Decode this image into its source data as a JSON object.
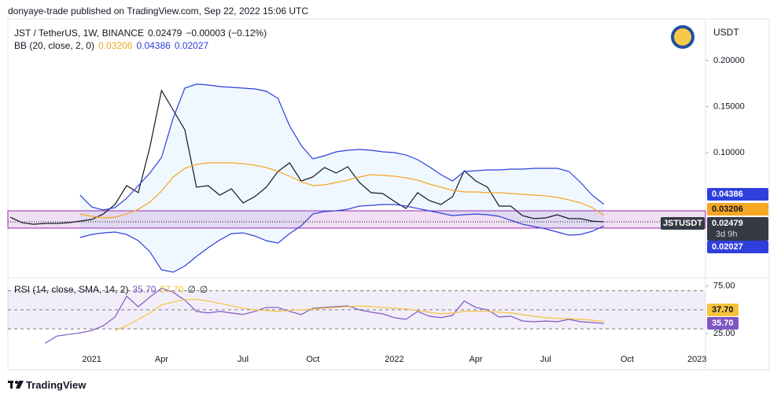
{
  "header": {
    "published": "donyaye-trade published on TradingView.com, Sep 22, 2022 15:06 UTC"
  },
  "footer": {
    "brand": "TradingView"
  },
  "chart_data": [
    {
      "type": "line",
      "title": "JST / TetherUS, 1W, BINANCE",
      "change": "−0.00003 (−0.12%)",
      "indicator": "BB (20, close, 2, 0)",
      "y_axis_label": "USDT",
      "symbol_label": "JSTUSDT",
      "countdown": "3d 9h",
      "ylim": [
        -0.035,
        0.2487
      ],
      "yticks": [
        {
          "value": 0.1,
          "label": "0.10000"
        },
        {
          "value": 0.15,
          "label": "0.15000"
        },
        {
          "value": 0.2,
          "label": "0.20000"
        }
      ],
      "band_fill": "rgba(33,150,243,0.07)",
      "categories": [
        null,
        null,
        null,
        null,
        null,
        null,
        null,
        "2021",
        null,
        null,
        null,
        null,
        null,
        "Apr",
        null,
        null,
        null,
        null,
        null,
        null,
        "Jul",
        null,
        null,
        null,
        null,
        null,
        "Oct",
        null,
        null,
        null,
        null,
        null,
        null,
        "2022",
        null,
        null,
        null,
        null,
        null,
        null,
        "Apr",
        null,
        null,
        null,
        null,
        null,
        "Jul",
        null,
        null,
        null,
        null,
        null,
        null,
        "Oct",
        null,
        null,
        null,
        null,
        null,
        "2023"
      ],
      "series": [
        {
          "color": "#131722",
          "values": [
            0.0299,
            0.0239,
            0.0222,
            0.0231,
            0.0231,
            0.0239,
            0.0256,
            0.0274,
            0.0333,
            0.0436,
            0.0641,
            0.0564,
            0.106,
            0.1675,
            0.1462,
            0.1248,
            0.0624,
            0.0641,
            0.0538,
            0.0607,
            0.0453,
            0.0521,
            0.0624,
            0.0795,
            0.0889,
            0.0692,
            0.0735,
            0.0838,
            0.0778,
            0.0846,
            0.0675,
            0.0564,
            0.0556,
            0.047,
            0.0393,
            0.0564,
            0.0479,
            0.0436,
            0.0521,
            0.0803,
            0.0692,
            0.0624,
            0.0419,
            0.0419,
            0.0316,
            0.0282,
            0.0291,
            0.0325,
            0.0282,
            0.0282,
            0.0256,
            0.02479,
            null,
            null,
            null,
            null,
            null,
            null,
            null,
            null
          ]
        },
        {
          "color": "#2f3fdc",
          "values": [
            null,
            null,
            null,
            null,
            null,
            null,
            0.0538,
            0.041,
            0.0376,
            0.0402,
            0.0504,
            0.0641,
            0.0778,
            0.0949,
            0.1376,
            0.1701,
            0.1744,
            0.1735,
            0.1718,
            0.1709,
            0.1701,
            0.1692,
            0.1667,
            0.159,
            0.1291,
            0.1077,
            0.0932,
            0.0966,
            0.1009,
            0.1026,
            0.1034,
            0.1026,
            0.1009,
            0.1,
            0.0974,
            0.0923,
            0.0846,
            0.0761,
            0.0692,
            0.0795,
            0.0803,
            0.0812,
            0.0812,
            0.0821,
            0.0821,
            0.0829,
            0.0829,
            0.0829,
            0.0795,
            0.0675,
            0.0538,
            0.04386,
            null,
            null,
            null,
            null,
            null,
            null,
            null,
            null
          ]
        },
        {
          "color": "#f5a623",
          "values": [
            null,
            null,
            null,
            null,
            null,
            null,
            0.0333,
            0.0308,
            0.0291,
            0.0299,
            0.0333,
            0.0385,
            0.0462,
            0.0581,
            0.0735,
            0.0829,
            0.0872,
            0.0889,
            0.0889,
            0.0889,
            0.088,
            0.0863,
            0.0838,
            0.0795,
            0.0744,
            0.0684,
            0.0641,
            0.065,
            0.0675,
            0.0701,
            0.0735,
            0.0761,
            0.0752,
            0.0744,
            0.0726,
            0.0701,
            0.0658,
            0.0624,
            0.059,
            0.0573,
            0.0573,
            0.0564,
            0.0564,
            0.0556,
            0.0547,
            0.0538,
            0.053,
            0.0513,
            0.0487,
            0.0453,
            0.0402,
            0.03206,
            null,
            null,
            null,
            null,
            null,
            null,
            null,
            null
          ]
        },
        {
          "color": "#2f3fdc",
          "values": [
            null,
            null,
            null,
            null,
            null,
            null,
            0.0077,
            0.0111,
            0.0128,
            0.0137,
            0.0111,
            0.0043,
            -0.0077,
            -0.0274,
            -0.0299,
            -0.0231,
            -0.0128,
            -0.0034,
            0.0051,
            0.012,
            0.0128,
            0.0094,
            0.0043,
            0.0017,
            0.012,
            0.0205,
            0.0333,
            0.0359,
            0.0368,
            0.0385,
            0.0419,
            0.0427,
            0.0436,
            0.0436,
            0.0419,
            0.0393,
            0.0368,
            0.0342,
            0.0316,
            0.0325,
            0.0333,
            0.0325,
            0.0308,
            0.0265,
            0.0222,
            0.0197,
            0.0171,
            0.0137,
            0.0103,
            0.0111,
            0.0145,
            0.02027,
            null,
            null,
            null,
            null,
            null,
            null,
            null,
            null
          ]
        }
      ]
    },
    {
      "type": "line",
      "title": "RSI (14, close, SMA, 14, 2)",
      "na_labels": [
        "∅",
        "∅"
      ],
      "ylim": [
        12,
        82
      ],
      "yticks": [
        {
          "value": 75,
          "label": "75.00"
        },
        {
          "value": 25,
          "label": "25.00"
        }
      ],
      "hlines": [
        70,
        50,
        30
      ],
      "band_fill": "rgba(126,87,194,0.1)",
      "series": [
        {
          "color": "#7e57c2",
          "last_label": "35.70",
          "values": [
            null,
            null,
            null,
            15.0,
            22.5,
            24.2,
            25.8,
            28.3,
            33.3,
            42.5,
            64.2,
            53.3,
            63.3,
            72.5,
            68.3,
            60.0,
            48.3,
            46.7,
            48.3,
            46.7,
            45.0,
            48.3,
            52.5,
            52.5,
            48.3,
            45.0,
            51.7,
            52.5,
            53.3,
            54.2,
            50.0,
            47.5,
            45.8,
            41.7,
            40.0,
            48.3,
            43.3,
            41.7,
            44.2,
            59.2,
            52.5,
            50.0,
            42.5,
            43.3,
            38.3,
            37.5,
            38.3,
            37.5,
            40.0,
            37.5,
            36.7,
            35.7,
            null,
            null,
            null,
            null,
            null,
            null,
            null,
            null
          ]
        },
        {
          "color": "#f6c33b",
          "last_label": "37.70",
          "values": [
            null,
            null,
            null,
            null,
            null,
            null,
            null,
            null,
            null,
            28.3,
            33.3,
            40.0,
            46.7,
            55.0,
            58.3,
            60.8,
            60.8,
            59.2,
            56.7,
            54.2,
            51.7,
            50.0,
            49.2,
            48.3,
            49.2,
            50.0,
            50.8,
            51.7,
            52.5,
            53.3,
            54.2,
            53.3,
            52.5,
            51.7,
            50.8,
            49.2,
            47.5,
            45.8,
            46.7,
            48.3,
            48.3,
            48.3,
            47.5,
            46.7,
            45.0,
            43.3,
            41.7,
            40.8,
            40.8,
            40.0,
            39.2,
            37.7,
            null,
            null,
            null,
            null,
            null,
            null,
            null,
            null
          ]
        }
      ]
    }
  ]
}
